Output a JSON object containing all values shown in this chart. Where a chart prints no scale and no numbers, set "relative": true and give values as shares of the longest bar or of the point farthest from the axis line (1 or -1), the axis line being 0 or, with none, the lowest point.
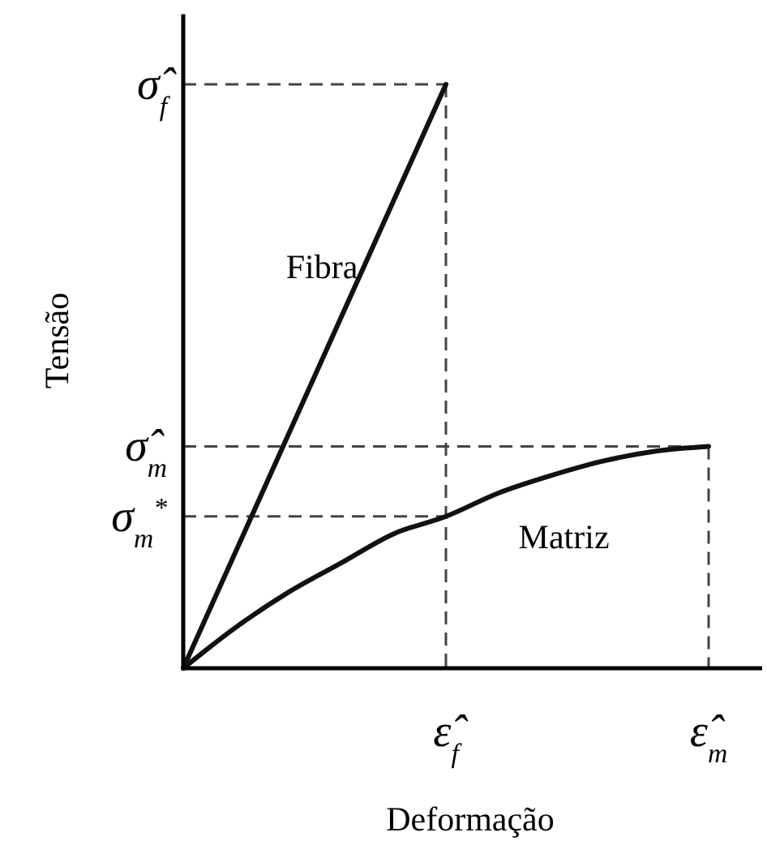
{
  "chart_data": {
    "type": "line",
    "xlabel": "Deformação",
    "ylabel": "Tensão",
    "relative": true,
    "categories": [
      null,
      null,
      null,
      null,
      null,
      "ε̂$_{f}$",
      null,
      null,
      null,
      null,
      "ε̂$_{m}$"
    ],
    "series": [
      {
        "name": "Fibra",
        "color": "#111111",
        "values": [
          0,
          0.2,
          0.4,
          0.6,
          0.8,
          1.0,
          null,
          null,
          null,
          null,
          null
        ]
      },
      {
        "name": "Matriz",
        "color": "#111111",
        "values": [
          0,
          0.07,
          0.13,
          0.18,
          0.23,
          0.26,
          0.3,
          0.33,
          0.355,
          0.372,
          0.38
        ]
      }
    ],
    "ref_lines": [
      {
        "axis": "y",
        "value": 1.0,
        "label": "σ̂$_{f}$",
        "line_style": "dashed",
        "color": "#444444"
      },
      {
        "axis": "y",
        "value": 0.38,
        "label": "σ̂$_{m}$",
        "line_style": "dashed",
        "color": "#444444"
      },
      {
        "axis": "y",
        "value": 0.26,
        "label": "σ$_{m}$$^{*}$",
        "line_style": "dashed",
        "color": "#444444"
      },
      {
        "axis": "x",
        "value": "ε̂$_{f}$",
        "line_style": "dashed",
        "color": "#444444"
      },
      {
        "axis": "x",
        "value": "ε̂$_{m}$",
        "line_style": "dashed",
        "color": "#444444"
      }
    ]
  }
}
